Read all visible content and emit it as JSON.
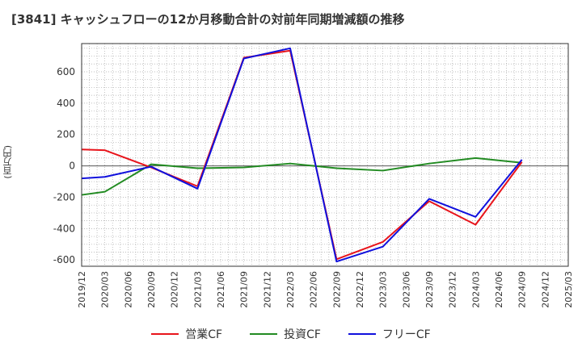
{
  "chart_data": {
    "type": "line",
    "title": "[3841]  キャッシュフローの12か月移動合計の対前年同期増減額の推移",
    "ylabel": "(百万円)",
    "xlabel": "",
    "ylim": [
      -640,
      780
    ],
    "yticks": [
      600,
      400,
      200,
      0,
      -200,
      -400,
      -600
    ],
    "categories": [
      "2019/12",
      "2020/03",
      "2020/06",
      "2020/09",
      "2020/12",
      "2021/03",
      "2021/06",
      "2021/09",
      "2021/12",
      "2022/03",
      "2022/06",
      "2022/09",
      "2022/12",
      "2023/03",
      "2023/06",
      "2023/09",
      "2023/12",
      "2024/03",
      "2024/06",
      "2024/09",
      "2024/12",
      "2025/03"
    ],
    "series": [
      {
        "name": "営業CF",
        "color": "#e8141b",
        "values": [
          105,
          100,
          null,
          -10,
          null,
          -130,
          null,
          690,
          null,
          735,
          null,
          -595,
          null,
          -485,
          null,
          -225,
          null,
          -375,
          null,
          25,
          null,
          null
        ]
      },
      {
        "name": "投資CF",
        "color": "#228b22",
        "values": [
          -185,
          -165,
          null,
          10,
          null,
          -15,
          null,
          -10,
          null,
          15,
          null,
          -15,
          null,
          -30,
          null,
          15,
          null,
          50,
          null,
          20,
          null,
          null
        ]
      },
      {
        "name": "フリーCF",
        "color": "#1010dd",
        "values": [
          -80,
          -70,
          null,
          -5,
          null,
          -145,
          null,
          685,
          null,
          750,
          null,
          -610,
          null,
          -515,
          null,
          -210,
          null,
          -325,
          null,
          40,
          null,
          null
        ]
      }
    ]
  }
}
